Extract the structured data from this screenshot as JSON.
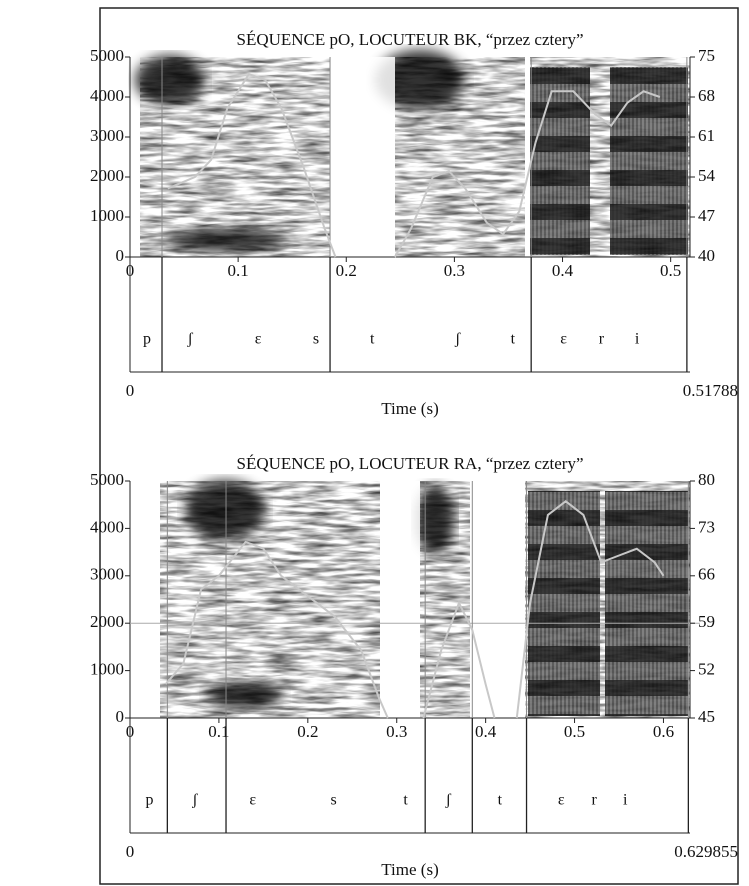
{
  "chart_data": [
    {
      "type": "spectrogram",
      "title": "SÉQUENCE pO, LOCUTEUR BK, “przez cztery”",
      "xlabel": "Time (s)",
      "xlim": [
        0,
        0.51788
      ],
      "xticks": [
        0,
        0.1,
        0.2,
        0.3,
        0.4,
        0.5
      ],
      "ylim": [
        0,
        5000
      ],
      "yticks": [
        0,
        1000,
        2000,
        3000,
        4000,
        5000
      ],
      "y2lim": [
        40,
        75
      ],
      "y2ticks": [
        40,
        47,
        54,
        61,
        68,
        75
      ],
      "series": [
        {
          "axis": "y2",
          "color": "#c8c8c8",
          "x": [
            0.035,
            0.06,
            0.075,
            0.09,
            0.11,
            0.125,
            0.14,
            0.16,
            0.18,
            0.19,
            0.22,
            0.245,
            0.26,
            0.28,
            0.295,
            0.31,
            0.33,
            0.345,
            0.36,
            0.375,
            0.39,
            0.41,
            0.43,
            0.445,
            0.46,
            0.475,
            0.49
          ],
          "values": [
            52,
            54,
            57,
            66,
            72,
            71,
            66,
            56,
            45,
            40,
            null,
            40,
            45,
            54,
            55,
            52,
            46,
            44,
            48,
            60,
            69,
            69,
            65,
            63,
            67,
            69,
            68
          ]
        }
      ],
      "boundaries": [
        0.0296,
        0.185,
        0.371,
        0.515
      ],
      "segments": [
        {
          "label": "p",
          "t": 0.0157
        },
        {
          "label": "ʃ",
          "t": 0.0556
        },
        {
          "label": "ε",
          "t": 0.1185
        },
        {
          "label": "s",
          "t": 0.172
        },
        {
          "label": "t",
          "t": 0.224
        },
        {
          "label": "ʃ",
          "t": 0.303
        },
        {
          "label": "t",
          "t": 0.354
        },
        {
          "label": "ε",
          "t": 0.401
        },
        {
          "label": "r",
          "t": 0.436
        },
        {
          "label": "i",
          "t": 0.469
        }
      ]
    },
    {
      "type": "spectrogram",
      "title": "SÉQUENCE pO, LOCUTEUR RA, “przez cztery”",
      "xlabel": "Time (s)",
      "xlim": [
        0,
        0.629855
      ],
      "xticks": [
        0,
        0.1,
        0.2,
        0.3,
        0.4,
        0.5,
        0.6
      ],
      "ylim": [
        0,
        5000
      ],
      "yticks": [
        0,
        1000,
        2000,
        3000,
        4000,
        5000
      ],
      "y2lim": [
        45,
        80
      ],
      "y2ticks": [
        45,
        52,
        59,
        66,
        73,
        80
      ],
      "series": [
        {
          "axis": "y2",
          "color": "#c8c8c8",
          "x": [
            0.04,
            0.06,
            0.08,
            0.1,
            0.13,
            0.15,
            0.17,
            0.2,
            0.23,
            0.26,
            0.28,
            0.29,
            0.31,
            0.33,
            0.35,
            0.37,
            0.385,
            0.4,
            0.41,
            0.42,
            0.435,
            0.45,
            0.47,
            0.49,
            0.51,
            0.53,
            0.55,
            0.57,
            0.59,
            0.6
          ],
          "values": [
            50,
            53,
            64,
            66,
            71,
            70,
            66,
            63,
            60,
            55,
            48,
            45,
            null,
            45,
            55,
            62,
            58,
            50,
            45,
            null,
            45,
            62,
            75,
            77,
            75,
            68,
            69,
            70,
            68,
            66
          ]
        }
      ],
      "boundaries": [
        0.042,
        0.108,
        0.332,
        0.385,
        0.446,
        0.628
      ],
      "segments": [
        {
          "label": "p",
          "t": 0.022
        },
        {
          "label": "ʃ",
          "t": 0.073
        },
        {
          "label": "ε",
          "t": 0.138
        },
        {
          "label": "s",
          "t": 0.229
        },
        {
          "label": "t",
          "t": 0.31
        },
        {
          "label": "ʃ",
          "t": 0.358
        },
        {
          "label": "t",
          "t": 0.416
        },
        {
          "label": "ε",
          "t": 0.485
        },
        {
          "label": "r",
          "t": 0.522
        },
        {
          "label": "i",
          "t": 0.557
        }
      ]
    }
  ]
}
